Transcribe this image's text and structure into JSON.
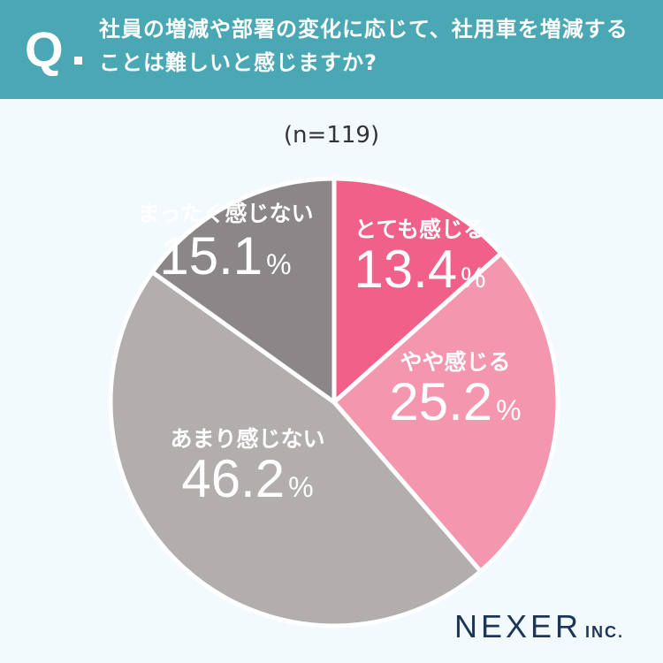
{
  "header": {
    "q_label": "Q",
    "question": "社員の増減や部署の変化に応じて、社用車を増減することは難しいと感じますか?"
  },
  "sample_size": "(n=119)",
  "brand": {
    "name": "NEXER",
    "suffix": "INC."
  },
  "chart_data": {
    "type": "pie",
    "title": "社員の増減や部署の変化に応じて、社用車を増減することは難しいと感じますか?",
    "sample_size": "(n=119)",
    "start": "12 o'clock",
    "direction": "clockwise",
    "slices": [
      {
        "label": "とても感じる",
        "value": 13.4,
        "value_text": "13.4",
        "unit": "%",
        "color": "#f06088"
      },
      {
        "label": "やや感じる",
        "value": 25.2,
        "value_text": "25.2",
        "unit": "%",
        "color": "#f396ae"
      },
      {
        "label": "あまり感じない",
        "value": 46.2,
        "value_text": "46.2",
        "unit": "%",
        "color": "#b3aeae"
      },
      {
        "label": "まったく感じない",
        "value": 15.1,
        "value_text": "15.1",
        "unit": "%",
        "color": "#8b8788"
      }
    ]
  }
}
